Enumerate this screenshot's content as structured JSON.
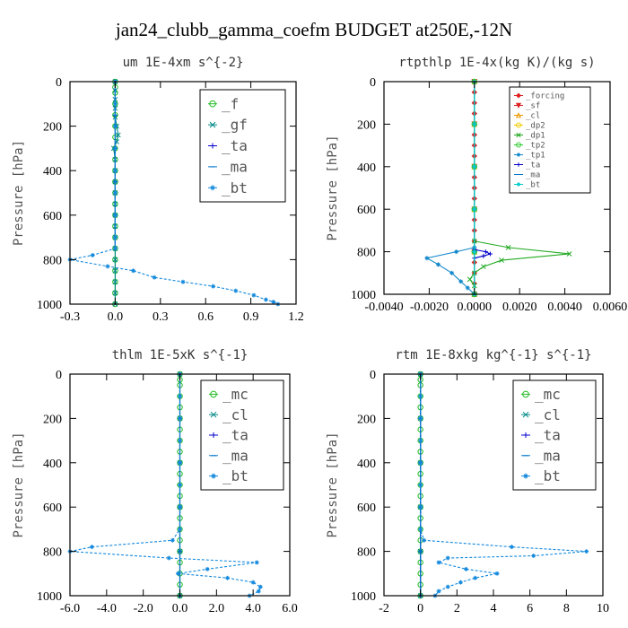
{
  "figure": {
    "title": "jan24_clubb_gamma_coefm  BUDGET at250E,-12N"
  },
  "chart_data": [
    {
      "type": "line",
      "title": "um  1E-4xm s^{-2}",
      "ylabel": "Pressure [hPa]",
      "xlim": [
        -0.3,
        1.2
      ],
      "ylim": [
        1000,
        0
      ],
      "xticks": [
        "-0.3",
        "0.0",
        "0.3",
        "0.6",
        "0.9",
        "1.2"
      ],
      "xtick_values": [
        -0.3,
        0.0,
        0.3,
        0.6,
        0.9,
        1.2
      ],
      "yticks": [
        "0",
        "200",
        "400",
        "600",
        "800",
        "1000"
      ],
      "ytick_values": [
        0,
        200,
        400,
        600,
        800,
        1000
      ],
      "legend_placement": "top-right",
      "legend_font": 16,
      "series": [
        {
          "name": "_f",
          "color": "#22bb22",
          "marker": "circle",
          "y": [
            0,
            25,
            50,
            100,
            150,
            200,
            250,
            300,
            350,
            400,
            450,
            500,
            550,
            600,
            650,
            700,
            750,
            800,
            850,
            900,
            950,
            1000
          ],
          "x": [
            0,
            0,
            0,
            0,
            0,
            0,
            0,
            0,
            0,
            0,
            0,
            0,
            0,
            0,
            0,
            0,
            0,
            0,
            0,
            0,
            0,
            0
          ]
        },
        {
          "name": "_gf",
          "color": "#008888",
          "marker": "x",
          "y": [
            0,
            40,
            80,
            120,
            160,
            200,
            240,
            270,
            300,
            350,
            400,
            450,
            500,
            550,
            600,
            650,
            700,
            750,
            800,
            850,
            900,
            950,
            1000
          ],
          "x": [
            0.0,
            0.0,
            0.0,
            0.0,
            0.0,
            0.01,
            0.02,
            0.01,
            -0.01,
            0.0,
            0.0,
            0.0,
            0.0,
            0.0,
            0.0,
            0.0,
            0.0,
            0.0,
            0.0,
            0.0,
            0.0,
            0.0,
            0.0
          ]
        },
        {
          "name": "_ta",
          "color": "#0000cc",
          "marker": "plus",
          "y": [
            0,
            150,
            300,
            450,
            600,
            750
          ],
          "x": [
            0,
            0,
            0,
            0,
            0,
            0
          ]
        },
        {
          "name": "_ma",
          "color": "#0077cc",
          "marker": "dash",
          "y": [
            0,
            150,
            300,
            450,
            600,
            750
          ],
          "x": [
            0,
            0,
            0,
            0,
            0,
            0
          ]
        },
        {
          "name": "_bt",
          "color": "#1188dd",
          "marker": "star",
          "dashed": true,
          "y": [
            0,
            100,
            200,
            300,
            400,
            500,
            600,
            700,
            750,
            780,
            800,
            830,
            850,
            880,
            900,
            920,
            940,
            960,
            980,
            990,
            1000
          ],
          "x": [
            0,
            0,
            0,
            0,
            0,
            0,
            0,
            0,
            0,
            -0.15,
            -0.3,
            -0.05,
            0.12,
            0.26,
            0.45,
            0.65,
            0.8,
            0.92,
            1.0,
            1.05,
            1.08
          ]
        }
      ]
    },
    {
      "type": "line",
      "title": "rtpthlp  1E-4x(kg K)/(kg s)",
      "ylabel": "Pressure [hPa]",
      "xlim": [
        -0.004,
        0.006
      ],
      "ylim": [
        1000,
        0
      ],
      "xticks": [
        "-0.0040",
        "-0.0020",
        "0.0000",
        "0.0020",
        "0.0040",
        "0.0060"
      ],
      "xtick_values": [
        -0.004,
        -0.002,
        0.0,
        0.002,
        0.004,
        0.006
      ],
      "yticks": [
        "0",
        "200",
        "400",
        "600",
        "800",
        "1000"
      ],
      "ytick_values": [
        0,
        200,
        400,
        600,
        800,
        1000
      ],
      "legend_placement": "top-right",
      "legend_font": 9,
      "series": [
        {
          "name": "_forcing",
          "color": "#dd2222",
          "marker": "diamond",
          "y": [
            0,
            50,
            100,
            150,
            200,
            250,
            300,
            350,
            400,
            450,
            500,
            550,
            600,
            650,
            700,
            750,
            800,
            850,
            900,
            950,
            1000
          ],
          "x": [
            0,
            0,
            0,
            0,
            0,
            0,
            0,
            0,
            0,
            0,
            0,
            0,
            0,
            0,
            0,
            0,
            0,
            0,
            0,
            0,
            0
          ]
        },
        {
          "name": "_sf",
          "color": "#dd2222",
          "marker": "triangle-down",
          "y": [
            0,
            200,
            400,
            600,
            800,
            1000
          ],
          "x": [
            0,
            0,
            0,
            0,
            0,
            0
          ]
        },
        {
          "name": "_cl",
          "color": "#ee9900",
          "marker": "triangle-up",
          "y": [
            0,
            200,
            400,
            600,
            800,
            1000
          ],
          "x": [
            0,
            0,
            0,
            0,
            0,
            0
          ]
        },
        {
          "name": "_dp2",
          "color": "#eecc00",
          "marker": "circle",
          "y": [
            0,
            200,
            400,
            600,
            800,
            1000
          ],
          "x": [
            0,
            0,
            0,
            0,
            0,
            0
          ]
        },
        {
          "name": "_dp1",
          "color": "#22aa22",
          "marker": "x",
          "y": [
            750,
            780,
            810,
            840,
            870,
            900,
            930,
            960,
            1000
          ],
          "x": [
            0.0,
            0.0015,
            0.0042,
            0.0012,
            0.0004,
            0.0,
            -0.0002,
            0.0,
            0.0
          ]
        },
        {
          "name": "_tp2",
          "color": "#33cc33",
          "marker": "circle",
          "y": [
            0,
            200,
            400,
            600,
            800,
            1000
          ],
          "x": [
            0,
            0,
            0,
            0,
            0,
            0
          ]
        },
        {
          "name": "_tp1",
          "color": "#1188cc",
          "marker": "star",
          "y": [
            780,
            800,
            830,
            860,
            900,
            940,
            970,
            1000
          ],
          "x": [
            0.0,
            -0.0008,
            -0.0021,
            -0.0016,
            -0.001,
            -0.0006,
            -0.0003,
            0.0
          ]
        },
        {
          "name": "_ta",
          "color": "#0000cc",
          "marker": "plus",
          "y": [
            790,
            800,
            810,
            820,
            830
          ],
          "x": [
            0.0,
            0.0005,
            0.0007,
            0.0004,
            0.0
          ]
        },
        {
          "name": "_ma",
          "color": "#0077cc",
          "marker": "dash",
          "y": [
            0,
            200,
            400,
            600,
            800,
            1000
          ],
          "x": [
            0,
            0,
            0,
            0,
            0,
            0
          ]
        },
        {
          "name": "_bt",
          "color": "#00cccc",
          "marker": "star",
          "y": [
            0,
            200,
            400,
            600,
            800,
            1000
          ],
          "x": [
            0,
            0,
            0,
            0,
            0,
            0
          ]
        }
      ]
    },
    {
      "type": "line",
      "title": "thlm  1E-5xK s^{-1}",
      "ylabel": "Pressure [hPa]",
      "xlim": [
        -6.0,
        6.0
      ],
      "ylim": [
        1000,
        0
      ],
      "xticks": [
        "-6.0",
        "-4.0",
        "-2.0",
        "0.0",
        "2.0",
        "4.0",
        "6.0"
      ],
      "xtick_values": [
        -6,
        -4,
        -2,
        0,
        2,
        4,
        6
      ],
      "yticks": [
        "0",
        "200",
        "400",
        "600",
        "800",
        "1000"
      ],
      "ytick_values": [
        0,
        200,
        400,
        600,
        800,
        1000
      ],
      "legend_placement": "top-right",
      "legend_font": 16,
      "series": [
        {
          "name": "_mc",
          "color": "#22bb22",
          "marker": "circle",
          "y": [
            0,
            25,
            50,
            100,
            150,
            200,
            250,
            300,
            350,
            400,
            450,
            500,
            550,
            600,
            650,
            700,
            750,
            800,
            850,
            900,
            950,
            1000
          ],
          "x": [
            0,
            0,
            0,
            0,
            0,
            0,
            0,
            0,
            0,
            0,
            0,
            0,
            0,
            0,
            0,
            0,
            0,
            0,
            0,
            0,
            0,
            0
          ]
        },
        {
          "name": "_cl",
          "color": "#008888",
          "marker": "x",
          "y": [
            0,
            200,
            400,
            600,
            800,
            1000
          ],
          "x": [
            0,
            0,
            0,
            0,
            0,
            0
          ]
        },
        {
          "name": "_ta",
          "color": "#0000cc",
          "marker": "plus",
          "y": [
            0,
            200,
            400,
            600,
            800,
            1000
          ],
          "x": [
            0,
            0,
            0,
            0,
            0,
            0
          ]
        },
        {
          "name": "_ma",
          "color": "#0077cc",
          "marker": "dash",
          "y": [
            0,
            200,
            400,
            600,
            800,
            1000
          ],
          "x": [
            0,
            0,
            0,
            0,
            0,
            0
          ]
        },
        {
          "name": "_bt",
          "color": "#1188dd",
          "marker": "star",
          "dashed": true,
          "y": [
            0,
            100,
            200,
            300,
            400,
            500,
            600,
            700,
            750,
            780,
            800,
            830,
            850,
            880,
            900,
            920,
            940,
            960,
            980,
            1000
          ],
          "x": [
            0,
            0,
            0,
            0,
            0,
            0,
            0,
            0,
            -0.4,
            -4.8,
            -6.0,
            -0.6,
            4.2,
            1.5,
            -0.1,
            2.6,
            4.0,
            4.4,
            4.3,
            3.8
          ]
        }
      ]
    },
    {
      "type": "line",
      "title": "rtm  1E-8xkg kg^{-1} s^{-1}",
      "ylabel": "Pressure [hPa]",
      "xlim": [
        -2,
        10
      ],
      "ylim": [
        1000,
        0
      ],
      "xticks": [
        "-2",
        "0",
        "2",
        "4",
        "6",
        "8",
        "10"
      ],
      "xtick_values": [
        -2,
        0,
        2,
        4,
        6,
        8,
        10
      ],
      "yticks": [
        "0",
        "200",
        "400",
        "600",
        "800",
        "1000"
      ],
      "ytick_values": [
        0,
        200,
        400,
        600,
        800,
        1000
      ],
      "legend_placement": "top-right",
      "legend_font": 16,
      "series": [
        {
          "name": "_mc",
          "color": "#22bb22",
          "marker": "circle",
          "y": [
            0,
            25,
            50,
            100,
            150,
            200,
            250,
            300,
            350,
            400,
            450,
            500,
            550,
            600,
            650,
            700,
            750,
            800,
            850,
            900,
            950,
            1000
          ],
          "x": [
            0,
            0,
            0,
            0,
            0,
            0,
            0,
            0,
            0,
            0,
            0,
            0,
            0,
            0,
            0,
            0,
            0,
            0,
            0,
            0,
            0,
            0
          ]
        },
        {
          "name": "_cl",
          "color": "#008888",
          "marker": "x",
          "y": [
            0,
            200,
            400,
            600,
            800,
            1000
          ],
          "x": [
            0,
            0,
            0,
            0,
            0,
            0
          ]
        },
        {
          "name": "_ta",
          "color": "#0000cc",
          "marker": "plus",
          "y": [
            0,
            200,
            400,
            600,
            800,
            1000
          ],
          "x": [
            0,
            0,
            0,
            0,
            0,
            0
          ]
        },
        {
          "name": "_ma",
          "color": "#0077cc",
          "marker": "dash",
          "y": [
            0,
            200,
            400,
            600,
            800,
            1000
          ],
          "x": [
            0,
            0,
            0,
            0,
            0,
            0
          ]
        },
        {
          "name": "_bt",
          "color": "#1188dd",
          "marker": "star",
          "dashed": true,
          "y": [
            0,
            100,
            200,
            300,
            400,
            500,
            600,
            700,
            750,
            780,
            800,
            820,
            830,
            850,
            880,
            900,
            920,
            940,
            960,
            980,
            1000
          ],
          "x": [
            0,
            0,
            0,
            0,
            0,
            0,
            0,
            0,
            0.2,
            5.0,
            9.1,
            6.2,
            1.5,
            1.0,
            2.5,
            4.2,
            3.0,
            2.2,
            1.5,
            1.0,
            0.8
          ]
        }
      ]
    }
  ]
}
